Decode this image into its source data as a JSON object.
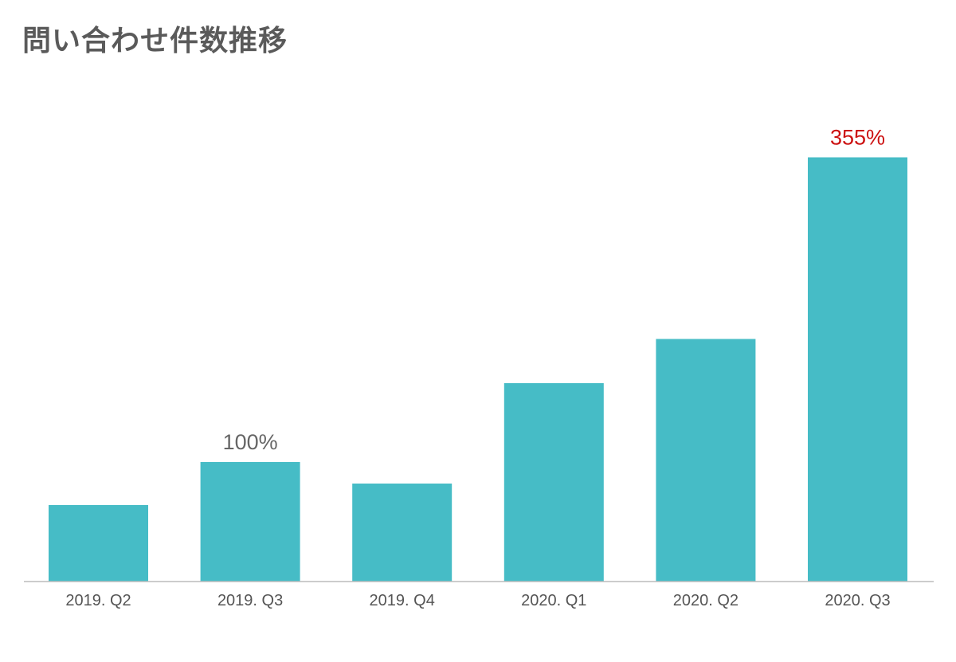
{
  "chart_data": {
    "type": "bar",
    "title": "問い合わせ件数推移",
    "xlabel": "",
    "ylabel": "",
    "categories": [
      "2019. Q2",
      "2019. Q3",
      "2019. Q4",
      "2020. Q1",
      "2020. Q2",
      "2020. Q3"
    ],
    "values": [
      64,
      100,
      82,
      166,
      203,
      355
    ],
    "data_labels": [
      "",
      "100%",
      "",
      "",
      "",
      "355%"
    ],
    "label_colors": [
      "#666666",
      "#666666",
      "#666666",
      "#666666",
      "#666666",
      "#cc1111"
    ],
    "ylim": [
      0,
      400
    ],
    "grid": false,
    "legend": "none",
    "bar_color": "#46bcc6",
    "axis_color": "#bbbbbb"
  }
}
